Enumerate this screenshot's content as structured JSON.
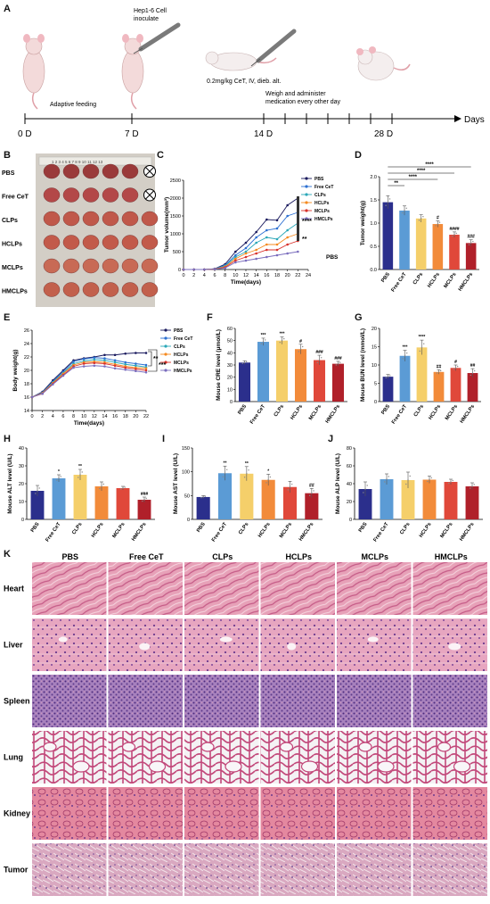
{
  "panel_labels": [
    "A",
    "B",
    "C",
    "D",
    "E",
    "F",
    "G",
    "H",
    "I",
    "J",
    "K"
  ],
  "timeline": {
    "ticks": [
      "0 D",
      "7 D",
      "14 D",
      "28 D"
    ],
    "axis_label": "Days",
    "inoculate": "Hep1-6 Cell\ninoculate",
    "inoculate_l1": "Hep1-6 Cell",
    "inoculate_l2": "inoculate",
    "feeding": "Adaptive feeding",
    "dose": "0.2mg/kg CeT, IV, dieb. alt.",
    "administer_l1": "Weigh and administer",
    "administer_l2": "medication every other day"
  },
  "groups": [
    "PBS",
    "Free CeT",
    "CLPs",
    "HCLPs",
    "MCLPs",
    "HMCLPs"
  ],
  "group_colors": [
    "#2b2f8c",
    "#5b9bd5",
    "#f5cf6a",
    "#f28b3a",
    "#e0483a",
    "#b0202a"
  ],
  "line_colors": [
    "#1a1a5e",
    "#2c6fd1",
    "#2aa7b8",
    "#f58a1f",
    "#d8302a",
    "#7a6dbd"
  ],
  "photo": {
    "ruler_text": "1 2 3 4 5 6 7 8 9 10 11 12 13"
  },
  "panel_c": {
    "ylabel": "Tumor volume(mm³)",
    "xlabel": "Time(days)",
    "stars_a": "****",
    "stars_b": "**",
    "side_label": "PBS",
    "chart_data": {
      "type": "line",
      "x": [
        0,
        2,
        4,
        6,
        8,
        10,
        12,
        14,
        16,
        18,
        20,
        22
      ],
      "xlim": [
        0,
        24
      ],
      "ylim": [
        0,
        2500
      ],
      "yticks": [
        0,
        500,
        1000,
        1500,
        2000,
        2500
      ],
      "series": [
        {
          "name": "PBS",
          "values": [
            0,
            0,
            0,
            20,
            150,
            500,
            750,
            1050,
            1400,
            1380,
            1800,
            2000
          ]
        },
        {
          "name": "Free CeT",
          "values": [
            0,
            0,
            0,
            20,
            120,
            400,
            600,
            900,
            1100,
            1150,
            1500,
            1600
          ]
        },
        {
          "name": "CLPs",
          "values": [
            0,
            0,
            0,
            15,
            100,
            350,
            500,
            750,
            900,
            850,
            1100,
            1300
          ]
        },
        {
          "name": "HCLPs",
          "values": [
            0,
            0,
            0,
            15,
            80,
            300,
            450,
            550,
            700,
            700,
            900,
            1000
          ]
        },
        {
          "name": "MCLPs",
          "values": [
            0,
            0,
            0,
            10,
            60,
            250,
            350,
            450,
            550,
            550,
            700,
            800
          ]
        },
        {
          "name": "HMCLPs",
          "values": [
            0,
            0,
            0,
            10,
            40,
            200,
            250,
            300,
            350,
            400,
            450,
            500
          ]
        }
      ]
    }
  },
  "panel_d": {
    "ylabel": "Tumor weight(g)",
    "sig_brackets": [
      "**",
      "****",
      "****",
      "****"
    ],
    "bar_marks": [
      "",
      "",
      "",
      "#",
      "####",
      "###"
    ],
    "chart_data": {
      "type": "bar",
      "categories": [
        "PBS",
        "Free CeT",
        "CLPs",
        "HCLPs",
        "MCLPs",
        "HMCLPs"
      ],
      "values": [
        1.45,
        1.27,
        1.1,
        0.98,
        0.75,
        0.57
      ],
      "errors": [
        0.14,
        0.1,
        0.08,
        0.07,
        0.06,
        0.07
      ],
      "ylim": [
        0,
        2.0
      ],
      "yticks": [
        0.0,
        0.5,
        1.0,
        1.5,
        2.0
      ]
    }
  },
  "panel_e": {
    "ylabel": "Body weight(g)",
    "xlabel": "Time(days)",
    "stars_a": "**",
    "stars_b": "***",
    "chart_data": {
      "type": "line",
      "x": [
        0,
        2,
        4,
        6,
        8,
        10,
        12,
        14,
        16,
        18,
        20,
        22
      ],
      "xlim": [
        0,
        22
      ],
      "ylim": [
        14,
        26
      ],
      "yticks": [
        14,
        16,
        18,
        20,
        22,
        24,
        26
      ],
      "series": [
        {
          "name": "PBS",
          "values": [
            16,
            16.8,
            18.5,
            20,
            21.5,
            21.8,
            22,
            22.3,
            22.3,
            22.5,
            22.6,
            22.6
          ]
        },
        {
          "name": "Free CeT",
          "values": [
            16,
            16.7,
            18.3,
            19.8,
            21.3,
            21.7,
            21.9,
            21.8,
            21.5,
            21.2,
            21,
            20.8
          ]
        },
        {
          "name": "CLPs",
          "values": [
            16,
            16.6,
            18.2,
            19.6,
            21,
            21.4,
            21.6,
            21.5,
            21.2,
            20.9,
            20.7,
            20.5
          ]
        },
        {
          "name": "HCLPs",
          "values": [
            16,
            16.6,
            18.1,
            19.5,
            20.8,
            21.2,
            21.3,
            21.2,
            20.9,
            20.6,
            20.4,
            20.3
          ]
        },
        {
          "name": "MCLPs",
          "values": [
            16,
            16.5,
            18,
            19.3,
            20.6,
            21,
            21.1,
            21,
            20.7,
            20.4,
            20.2,
            20
          ]
        },
        {
          "name": "HMCLPs",
          "values": [
            16,
            16.5,
            17.9,
            19.2,
            20.4,
            20.6,
            20.7,
            20.6,
            20.3,
            20.1,
            19.9,
            19.7
          ]
        }
      ]
    }
  },
  "panel_f": {
    "ylabel": "Mouse CRE level (μmol/L)",
    "bar_marks": [
      "",
      "***",
      "***",
      "#",
      "###",
      "###"
    ],
    "chart_data": {
      "type": "bar",
      "categories": [
        "PBS",
        "Free CeT",
        "CLPs",
        "HCLPs",
        "MCLPs",
        "HMCLPs"
      ],
      "values": [
        32,
        49,
        50,
        43,
        34,
        31
      ],
      "errors": [
        1.5,
        3,
        3,
        4,
        4,
        2
      ],
      "ylim": [
        0,
        60
      ],
      "yticks": [
        0,
        10,
        20,
        30,
        40,
        50,
        60
      ]
    }
  },
  "panel_g": {
    "ylabel": "Mouse BUN level (mmol/L)",
    "bar_marks": [
      "",
      "***",
      "****",
      "##",
      "#",
      "##"
    ],
    "chart_data": {
      "type": "bar",
      "categories": [
        "PBS",
        "Free CeT",
        "CLPs",
        "HCLPs",
        "MCLPs",
        "HMCLPs"
      ],
      "values": [
        6.8,
        12.5,
        14.8,
        8.1,
        9.2,
        7.8
      ],
      "errors": [
        0.6,
        1.5,
        2,
        0.6,
        0.8,
        1.2
      ],
      "ylim": [
        0,
        20
      ],
      "yticks": [
        0,
        5,
        10,
        15,
        20
      ]
    }
  },
  "panel_h": {
    "ylabel": "Mouse ALT level (U/L)",
    "bar_marks": [
      "",
      "*",
      "**",
      "",
      "",
      "###"
    ],
    "chart_data": {
      "type": "bar",
      "categories": [
        "PBS",
        "Free CeT",
        "CLPs",
        "HCLPs",
        "MCLPs",
        "HMCLPs"
      ],
      "values": [
        16,
        23,
        25,
        18.5,
        17.5,
        11
      ],
      "errors": [
        3,
        2,
        3,
        2.5,
        1,
        1.5
      ],
      "ylim": [
        0,
        40
      ],
      "yticks": [
        0,
        10,
        20,
        30,
        40
      ]
    }
  },
  "panel_i": {
    "ylabel": "Mouse AST level (U/L)",
    "bar_marks": [
      "",
      "**",
      "**",
      "*",
      "",
      "##"
    ],
    "chart_data": {
      "type": "bar",
      "categories": [
        "PBS",
        "Free CeT",
        "CLPs",
        "HCLPs",
        "MCLPs",
        "HMCLPs"
      ],
      "values": [
        47,
        97,
        96,
        83,
        68,
        55
      ],
      "errors": [
        3,
        15,
        15,
        12,
        12,
        10
      ],
      "ylim": [
        0,
        150
      ],
      "yticks": [
        0,
        50,
        100,
        150
      ]
    }
  },
  "panel_j": {
    "ylabel": "Mouse ALP level (U/L)",
    "chart_data": {
      "type": "bar",
      "categories": [
        "PBS",
        "Free CeT",
        "CLPs",
        "HCLPs",
        "MCLPs",
        "HMCLPs"
      ],
      "values": [
        34,
        45,
        44,
        44.5,
        42,
        37
      ],
      "errors": [
        8,
        6,
        9,
        4,
        3,
        4
      ],
      "ylim": [
        0,
        80
      ],
      "yticks": [
        0,
        20,
        40,
        60,
        80
      ]
    }
  },
  "histology": {
    "columns": [
      "PBS",
      "Free CeT",
      "CLPs",
      "HCLPs",
      "MCLPs",
      "HMCLPs"
    ],
    "rows": [
      "Heart",
      "Liver",
      "Spleen",
      "Lung",
      "Kidney",
      "Tumor"
    ]
  }
}
